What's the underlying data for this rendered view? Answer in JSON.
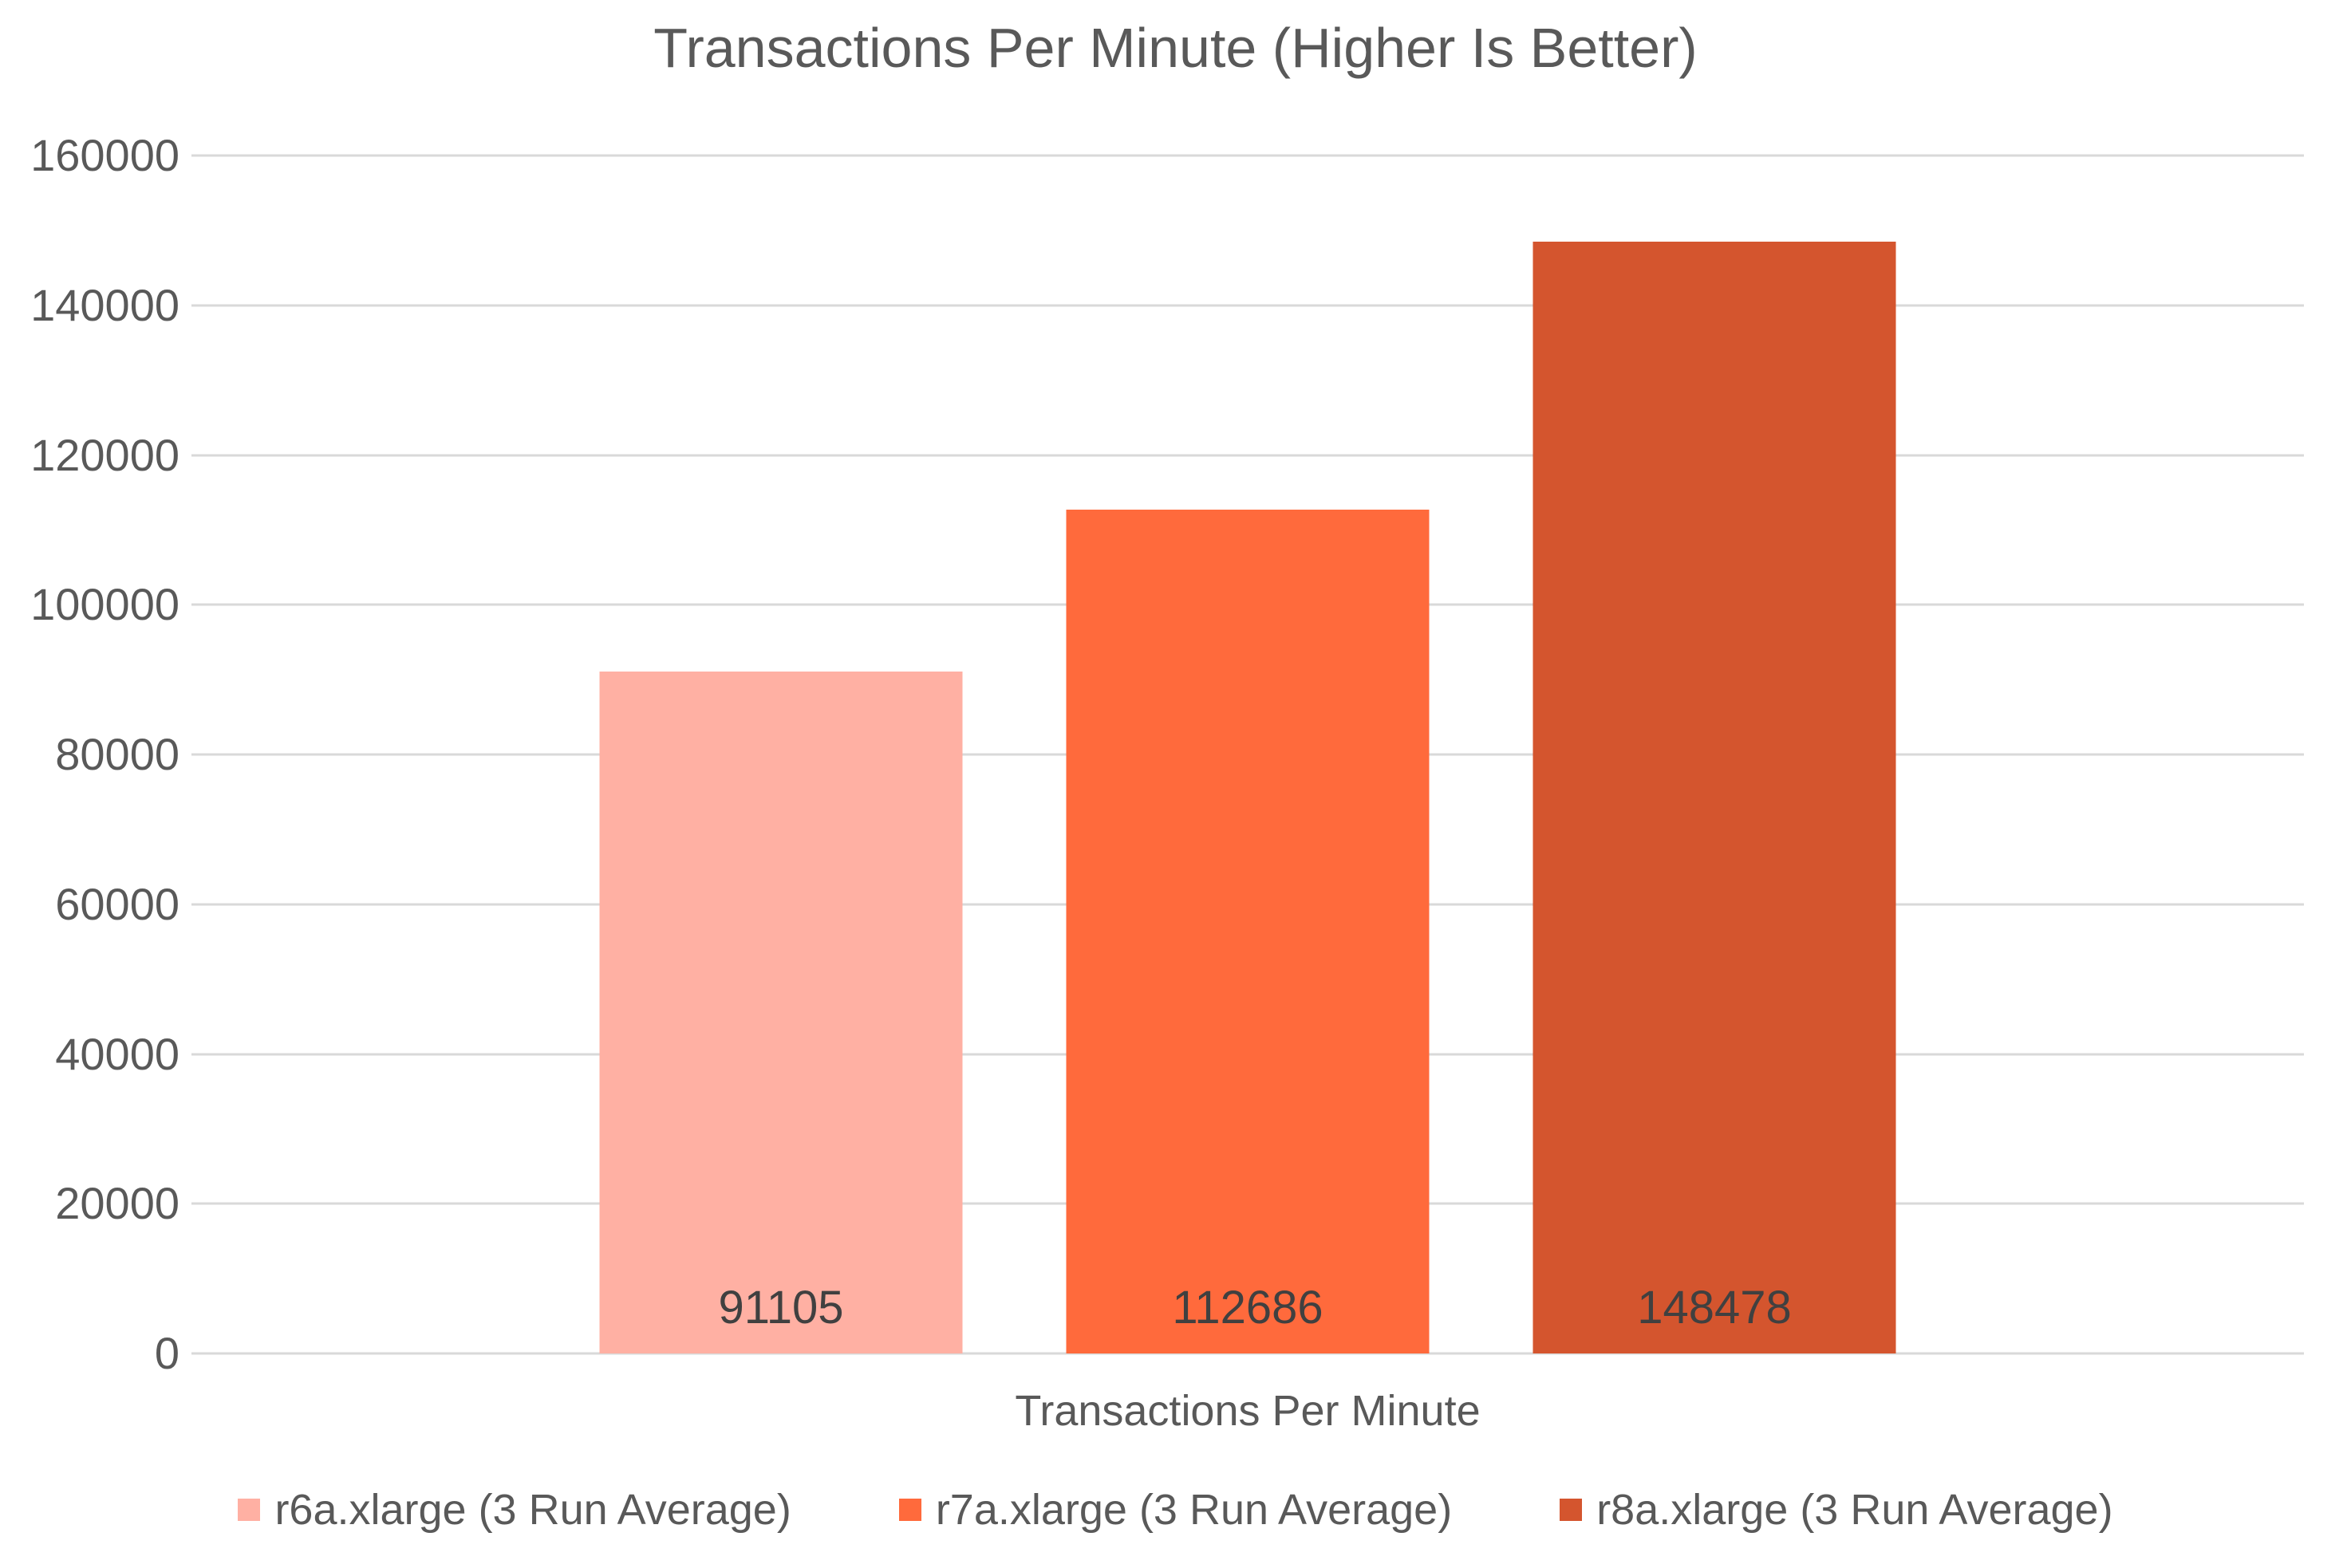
{
  "chart_data": {
    "type": "bar",
    "title": "Transactions Per Minute (Higher Is Better)",
    "categories": [
      "Transactions Per Minute"
    ],
    "series": [
      {
        "name": "r6a.xlarge (3 Run Average)",
        "values": [
          91105
        ],
        "color": "#FFB0A3"
      },
      {
        "name": "r7a.xlarge (3 Run Average)",
        "values": [
          112686
        ],
        "color": "#FF6A3C"
      },
      {
        "name": "r8a.xlarge (3 Run Average)",
        "values": [
          148478
        ],
        "color": "#D4552E"
      }
    ],
    "xlabel": "Transactions Per Minute",
    "ylabel": "",
    "ylim": [
      0,
      160000
    ],
    "yticks": [
      0,
      20000,
      40000,
      60000,
      80000,
      100000,
      120000,
      140000,
      160000
    ],
    "grid": true,
    "data_labels": true,
    "legend_position": "bottom"
  },
  "theme": {
    "background": "#FFFFFF",
    "text_color": "#595959",
    "value_label_color": "#404040",
    "gridline_color": "#D9D9D9"
  }
}
